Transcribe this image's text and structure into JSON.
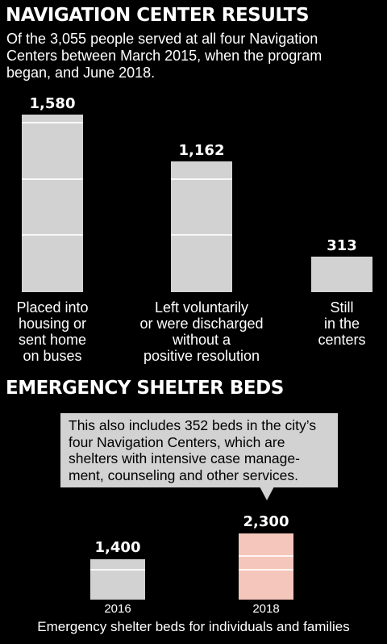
{
  "chart_data": [
    {
      "type": "bar",
      "title": "NAVIGATION CENTER RESULTS",
      "subtitle": [
        "Of the 3,055 people served at all four Navigation",
        "Centers between March 2015, when the program",
        "began, and June 2018."
      ],
      "categories": [
        [
          "Placed into",
          "housing or",
          "sent home",
          "on buses"
        ],
        [
          "Left voluntarily",
          "or were discharged",
          "without a",
          "positive resolution"
        ],
        [
          "Still",
          "in the",
          "centers"
        ]
      ],
      "values": [
        1580,
        1162,
        313
      ],
      "value_labels": [
        "1,580",
        "1,162",
        "313"
      ],
      "ylim": [
        0,
        1580
      ],
      "grid_values": [
        500,
        1000,
        1500
      ],
      "bar_color": "#d2d2d2"
    },
    {
      "type": "bar",
      "title": "EMERGENCY SHELTER BEDS",
      "annotation": [
        "This also includes 352 beds in the city’s",
        "four Navigation Centers, which are",
        "shelters with intensive case manage-",
        "ment, counseling and other services."
      ],
      "categories": [
        "2016",
        "2018"
      ],
      "values": [
        1400,
        2300
      ],
      "value_labels": [
        "1,400",
        "2,300"
      ],
      "ylim": [
        0,
        2300
      ],
      "grid_values": [
        500,
        1000,
        1500
      ],
      "bar_colors": [
        "#d2d2d2",
        "#f5c6bb"
      ],
      "xlabel": "Emergency shelter beds for individuals and families"
    }
  ]
}
